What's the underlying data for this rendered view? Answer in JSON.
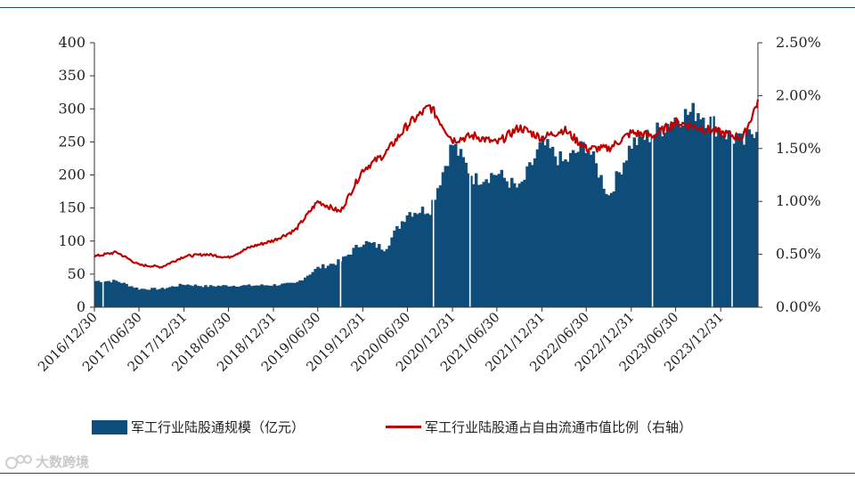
{
  "chart_data": {
    "type": "bar+line",
    "x_axis": {
      "tick_labels": [
        "2016/12/30",
        "2017/06/30",
        "2017/12/31",
        "2018/06/30",
        "2018/12/31",
        "2019/06/30",
        "2019/12/31",
        "2020/06/30",
        "2020/12/31",
        "2021/06/30",
        "2021/12/31",
        "2022/06/30",
        "2022/12/31",
        "2023/06/30",
        "2023/12/31"
      ]
    },
    "y_left": {
      "ylim": [
        0,
        400
      ],
      "ticks": [
        0,
        50,
        100,
        150,
        200,
        250,
        300,
        350,
        400
      ],
      "tick_labels": [
        "0",
        "50",
        "100",
        "150",
        "200",
        "250",
        "300",
        "350",
        "400"
      ]
    },
    "y_right": {
      "ylim": [
        0,
        2.5
      ],
      "ticks": [
        0,
        0.5,
        1.0,
        1.5,
        2.0,
        2.5
      ],
      "tick_labels": [
        "0.00%",
        "0.50%",
        "1.00%",
        "1.50%",
        "2.00%",
        "2.50%"
      ]
    },
    "x": [
      "2016-12-30",
      "2017-03-31",
      "2017-06-30",
      "2017-09-30",
      "2017-12-31",
      "2018-03-31",
      "2018-06-30",
      "2018-09-30",
      "2018-12-31",
      "2019-03-31",
      "2019-06-30",
      "2019-09-30",
      "2019-12-31",
      "2020-03-31",
      "2020-06-30",
      "2020-09-30",
      "2020-12-31",
      "2021-03-31",
      "2021-06-30",
      "2021-09-30",
      "2021-12-31",
      "2022-03-31",
      "2022-06-30",
      "2022-09-30",
      "2022-12-31",
      "2023-03-31",
      "2023-06-30",
      "2023-09-30",
      "2023-12-31",
      "2024-03-31",
      "2024-05-31"
    ],
    "series": [
      {
        "name": "军工行业陆股通规模（亿元）",
        "type": "bar",
        "axis": "left",
        "color": "#0e4d7a",
        "values": [
          40,
          40,
          28,
          28,
          35,
          32,
          33,
          33,
          34,
          36,
          60,
          70,
          100,
          90,
          145,
          150,
          250,
          195,
          205,
          180,
          250,
          220,
          250,
          170,
          250,
          265,
          290,
          300,
          270,
          250,
          280
        ]
      },
      {
        "name": "军工行业陆股通占自由流通市值比例（右轴）",
        "type": "line",
        "axis": "right",
        "color": "#c00000",
        "values": [
          0.48,
          0.52,
          0.4,
          0.38,
          0.48,
          0.5,
          0.47,
          0.57,
          0.63,
          0.73,
          1.0,
          0.9,
          1.3,
          1.45,
          1.72,
          1.9,
          1.58,
          1.62,
          1.55,
          1.7,
          1.6,
          1.68,
          1.5,
          1.5,
          1.65,
          1.62,
          1.75,
          1.7,
          1.65,
          1.6,
          1.95
        ]
      }
    ],
    "legend_position": "bottom"
  },
  "legend": {
    "bar_label": "军工行业陆股通规模（亿元）",
    "line_label": "军工行业陆股通占自由流通市值比例（右轴）"
  },
  "watermark": {
    "text": "大数跨境"
  }
}
